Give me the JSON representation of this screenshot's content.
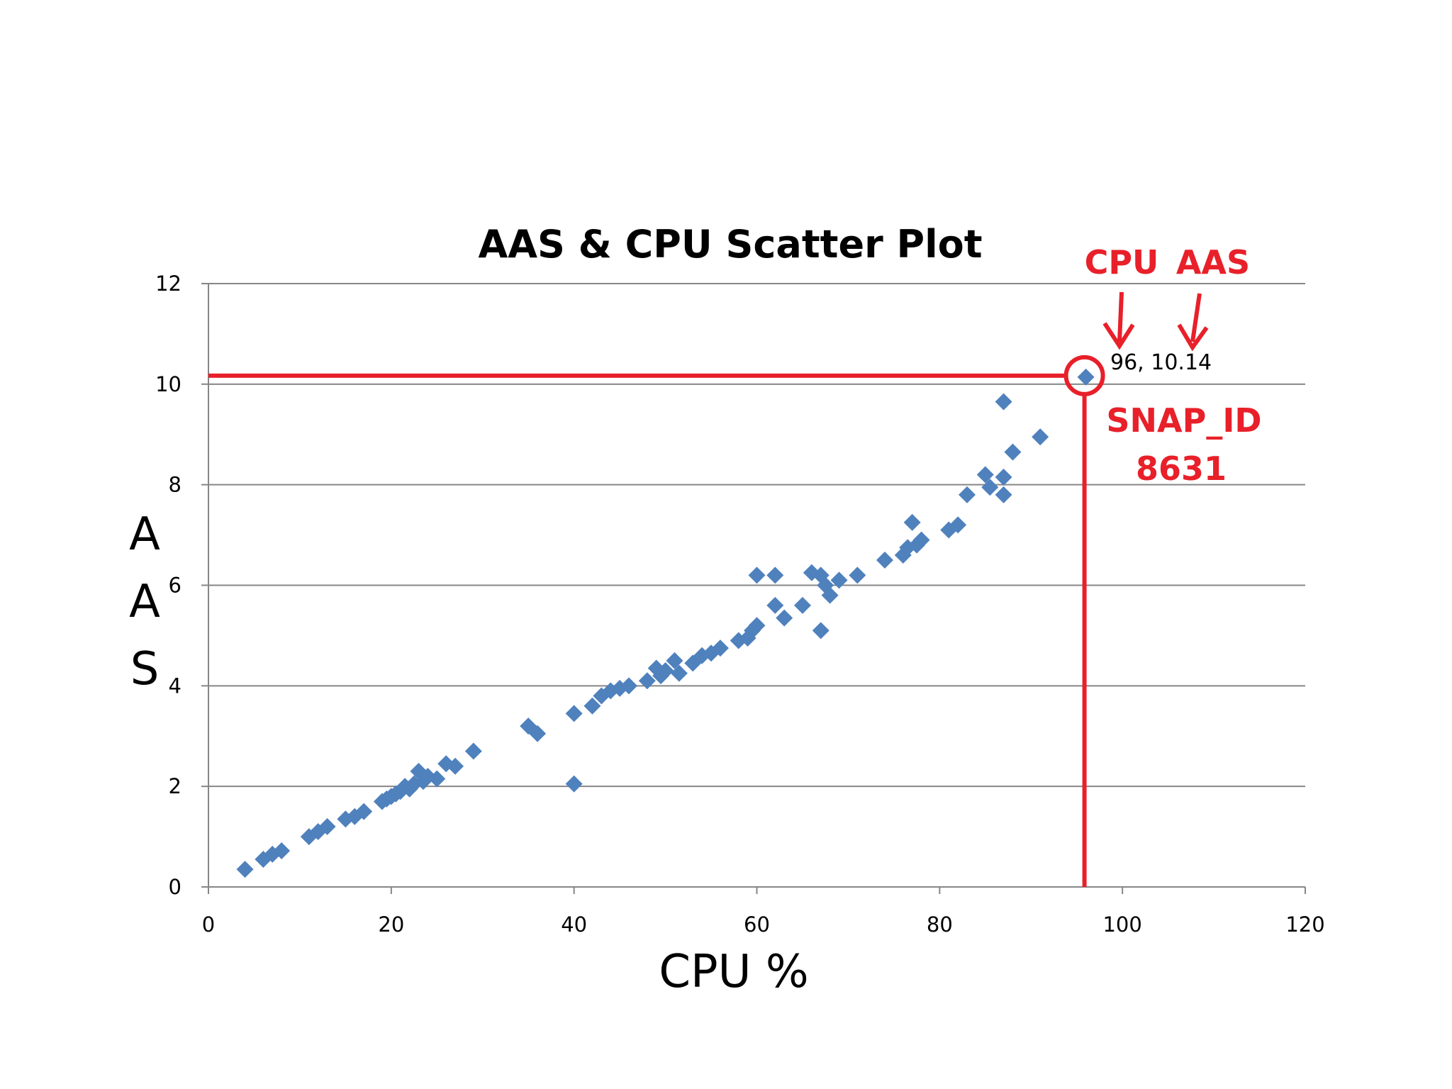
{
  "chart_data": {
    "type": "scatter",
    "title": "AAS & CPU Scatter Plot",
    "xlabel": "CPU %",
    "ylabel_letters": [
      "A",
      "A",
      "S"
    ],
    "xlim": [
      0,
      120
    ],
    "ylim": [
      0,
      12
    ],
    "x_ticks": [
      "0",
      "20",
      "40",
      "60",
      "80",
      "100",
      "120"
    ],
    "y_ticks": [
      "0",
      "2",
      "4",
      "6",
      "8",
      "10",
      "12"
    ],
    "grid": "horizontal",
    "marker": "diamond",
    "marker_color": "#4f81bd",
    "points": [
      [
        4,
        0.35
      ],
      [
        6,
        0.55
      ],
      [
        7,
        0.65
      ],
      [
        8,
        0.72
      ],
      [
        11,
        1.0
      ],
      [
        12,
        1.1
      ],
      [
        13,
        1.2
      ],
      [
        15,
        1.35
      ],
      [
        16,
        1.4
      ],
      [
        17,
        1.5
      ],
      [
        19,
        1.7
      ],
      [
        19.5,
        1.75
      ],
      [
        20,
        1.8
      ],
      [
        20.5,
        1.85
      ],
      [
        21,
        1.9
      ],
      [
        21.5,
        2.0
      ],
      [
        22,
        1.95
      ],
      [
        22.5,
        2.05
      ],
      [
        23,
        2.3
      ],
      [
        23.5,
        2.1
      ],
      [
        24,
        2.2
      ],
      [
        25,
        2.15
      ],
      [
        26,
        2.45
      ],
      [
        27,
        2.4
      ],
      [
        29,
        2.7
      ],
      [
        35,
        3.2
      ],
      [
        36,
        3.05
      ],
      [
        40,
        3.45
      ],
      [
        40,
        2.05
      ],
      [
        42,
        3.6
      ],
      [
        43,
        3.8
      ],
      [
        44,
        3.9
      ],
      [
        45,
        3.95
      ],
      [
        46,
        4.0
      ],
      [
        48,
        4.1
      ],
      [
        49,
        4.35
      ],
      [
        49.5,
        4.2
      ],
      [
        50,
        4.3
      ],
      [
        51,
        4.5
      ],
      [
        51.5,
        4.25
      ],
      [
        53,
        4.45
      ],
      [
        54,
        4.6
      ],
      [
        55,
        4.65
      ],
      [
        56,
        4.75
      ],
      [
        58,
        4.9
      ],
      [
        59,
        4.95
      ],
      [
        59.5,
        5.1
      ],
      [
        60,
        5.2
      ],
      [
        60,
        6.2
      ],
      [
        62,
        6.2
      ],
      [
        62,
        5.6
      ],
      [
        63,
        5.35
      ],
      [
        65,
        5.6
      ],
      [
        66,
        6.25
      ],
      [
        67,
        6.2
      ],
      [
        67.5,
        6.0
      ],
      [
        67,
        5.1
      ],
      [
        68,
        5.8
      ],
      [
        69,
        6.1
      ],
      [
        71,
        6.2
      ],
      [
        74,
        6.5
      ],
      [
        76,
        6.6
      ],
      [
        76.5,
        6.75
      ],
      [
        77,
        7.25
      ],
      [
        77.5,
        6.8
      ],
      [
        78,
        6.9
      ],
      [
        81,
        7.1
      ],
      [
        82,
        7.2
      ],
      [
        83,
        7.8
      ],
      [
        85,
        8.2
      ],
      [
        85.5,
        7.95
      ],
      [
        87,
        9.65
      ],
      [
        87,
        8.15
      ],
      [
        87,
        7.8
      ],
      [
        88,
        8.65
      ],
      [
        91,
        8.95
      ],
      [
        96,
        10.14
      ]
    ],
    "highlight": {
      "x": 96,
      "y": 10.14,
      "point_label": "96, 10.14",
      "cpu_label": "CPU",
      "aas_label": "AAS",
      "snap_id_label": "SNAP_ID",
      "snap_id_value": "8631",
      "color": "#e8202a"
    }
  }
}
